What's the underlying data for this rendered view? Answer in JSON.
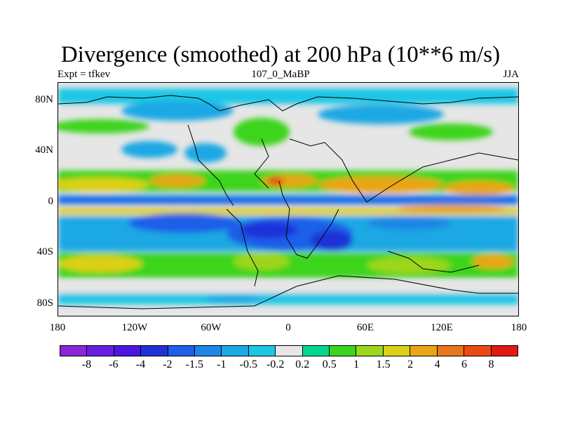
{
  "title": "Divergence (smoothed) at 200 hPa (10**6 m/s)",
  "subtitle_left": "Expt = tfkev",
  "subtitle_center": "107_0_MaBP",
  "subtitle_right": "JJA",
  "map": {
    "projection": "cylindrical equidistant",
    "background_color": "#e6e6e6",
    "coastline_color": "#000000",
    "lat_ticks": [
      "80N",
      "40N",
      "0",
      "40S",
      "80S"
    ],
    "lon_ticks": [
      "180",
      "120W",
      "60W",
      "0",
      "60E",
      "120E",
      "180"
    ]
  },
  "colorbar": {
    "colors": [
      "#8c24d8",
      "#6a1ee0",
      "#4a16e0",
      "#1f32d8",
      "#1e5ee8",
      "#1e86e6",
      "#1ea8e4",
      "#1ec6e6",
      "#e6e6e6",
      "#00d890",
      "#3cd41e",
      "#9cd61e",
      "#dcd018",
      "#e8a616",
      "#e8761a",
      "#e84c14",
      "#e01a14"
    ],
    "labels": [
      "-8",
      "-6",
      "-4",
      "-2",
      "-1.5",
      "-1",
      "-0.5",
      "-0.2",
      "0.2",
      "0.5",
      "1",
      "1.5",
      "2",
      "4",
      "6",
      "8"
    ]
  }
}
